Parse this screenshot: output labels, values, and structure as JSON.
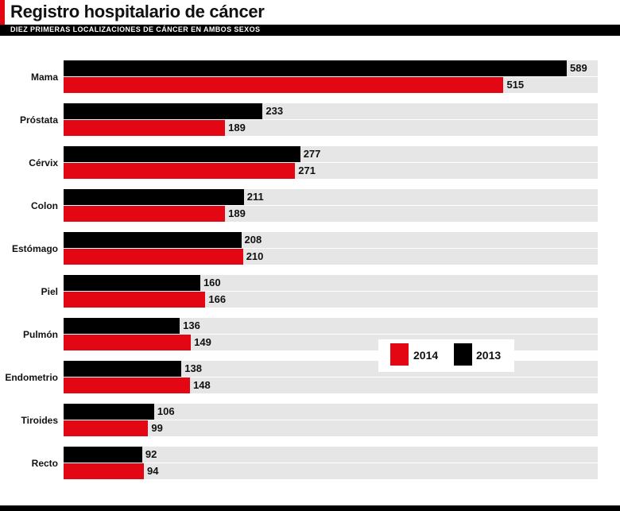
{
  "header": {
    "title": "Registro hospitalario de cáncer",
    "subtitle": "DIEZ PRIMERAS LOCALIZACIONES DE CÁNCER EN AMBOS SEXOS"
  },
  "colors": {
    "2013": "#000000",
    "2014": "#e30613",
    "track": "#e6e6e6"
  },
  "chart_data": {
    "type": "bar",
    "orientation": "horizontal",
    "title": "Registro hospitalario de cáncer",
    "subtitle": "DIEZ PRIMERAS LOCALIZACIONES DE CÁNCER EN AMBOS SEXOS",
    "categories": [
      "Mama",
      "Próstata",
      "Cérvix",
      "Colon",
      "Estómago",
      "Piel",
      "Pulmón",
      "Endometrio",
      "Tiroides",
      "Recto"
    ],
    "series": [
      {
        "name": "2013",
        "values": [
          589,
          233,
          277,
          211,
          208,
          160,
          136,
          138,
          106,
          92
        ]
      },
      {
        "name": "2014",
        "values": [
          515,
          189,
          271,
          189,
          210,
          166,
          149,
          148,
          99,
          94
        ]
      }
    ],
    "xlim": [
      0,
      625
    ],
    "legend": "center-right",
    "legend_labels": [
      "2014",
      "2013"
    ]
  }
}
